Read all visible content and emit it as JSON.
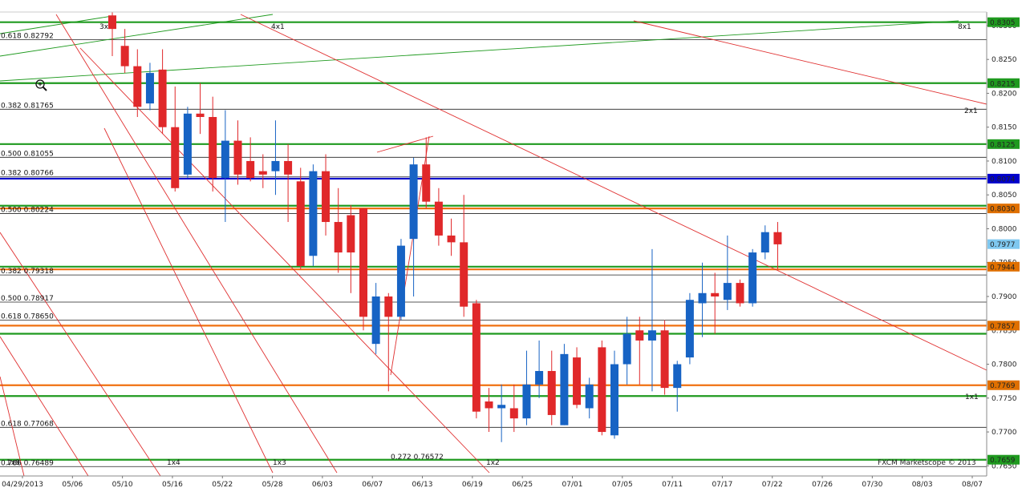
{
  "chart_data": {
    "type": "candlestick",
    "watermark": "FXCM Marketscope © 2013",
    "ylim": [
      0.7635,
      0.832
    ],
    "x_ticks": [
      "04/29/2013",
      "05/06",
      "05/10",
      "05/16",
      "05/22",
      "05/28",
      "06/03",
      "06/07",
      "06/13",
      "06/19",
      "06/25",
      "07/01",
      "07/05",
      "07/11",
      "07/17",
      "07/22",
      "07/26",
      "07/30",
      "08/03",
      "08/07"
    ],
    "y_ticks": [
      0.765,
      0.77,
      0.775,
      0.78,
      0.785,
      0.79,
      0.795,
      0.8,
      0.805,
      0.81,
      0.815,
      0.82,
      0.825,
      0.83
    ],
    "price_tags": [
      {
        "label": "0.8305",
        "value": 0.8305,
        "color": "#1f9a1f"
      },
      {
        "label": "0.8215",
        "value": 0.8215,
        "color": "#1f9a1f"
      },
      {
        "label": "0.8125",
        "value": 0.8125,
        "color": "#1f9a1f"
      },
      {
        "label": "0.8074",
        "value": 0.8074,
        "color": "#0000cc"
      },
      {
        "label": "0.8030",
        "value": 0.803,
        "color": "#e07000"
      },
      {
        "label": "0.7977",
        "value": 0.79773,
        "color": "#7fc8f0"
      },
      {
        "label": "0.7944",
        "value": 0.7944,
        "color": "#e07000"
      },
      {
        "label": "0.7857",
        "value": 0.7857,
        "color": "#e07000"
      },
      {
        "label": "0.7769",
        "value": 0.7769,
        "color": "#e07000"
      },
      {
        "label": "0.7659",
        "value": 0.7659,
        "color": "#1f9a1f"
      }
    ],
    "green_levels": [
      0.8305,
      0.8215,
      0.8125,
      0.8034,
      0.7944,
      0.7845,
      0.7753,
      0.7659
    ],
    "orange_levels": [
      0.803,
      0.794,
      0.7857,
      0.7769
    ],
    "blue_levels": [
      0.8074
    ],
    "black_levels": [
      0.82792,
      0.81765,
      0.81055,
      0.80766,
      0.80224,
      0.79318,
      0.78917,
      0.7865,
      0.7857,
      0.77068,
      0.76489
    ],
    "fib_labels": [
      {
        "text": "0.618 0.82792",
        "value": 0.82792
      },
      {
        "text": "0.382 0.81765",
        "value": 0.81765
      },
      {
        "text": "0.500 0.81055",
        "value": 0.81055
      },
      {
        "text": "0.382 0.80766",
        "value": 0.80766
      },
      {
        "text": "0.500 0.80224",
        "value": 0.80224
      },
      {
        "text": "0.382 0.79318",
        "value": 0.79318
      },
      {
        "text": "0.500 0.78917",
        "value": 0.78917
      },
      {
        "text": "0.618 0.78650",
        "value": 0.7865
      },
      {
        "text": "0.618 0.77068",
        "value": 0.77068
      },
      {
        "text": "0.786 0.76489",
        "value": 0.76489
      },
      {
        "text": "0.272 0.76572",
        "value": 0.76572
      }
    ],
    "gann_labels": [
      "3x1",
      "4x1",
      "8x1",
      "2x1",
      "1x1",
      "1x8",
      "1x4",
      "1x3",
      "1x2"
    ],
    "candles": [
      {
        "i": 0,
        "o": 0.8315,
        "h": 0.832,
        "l": 0.8255,
        "c": 0.8295
      },
      {
        "i": 1,
        "o": 0.827,
        "h": 0.8295,
        "l": 0.823,
        "c": 0.824
      },
      {
        "i": 2,
        "o": 0.824,
        "h": 0.8265,
        "l": 0.8165,
        "c": 0.818
      },
      {
        "i": 3,
        "o": 0.8185,
        "h": 0.8245,
        "l": 0.8175,
        "c": 0.823
      },
      {
        "i": 4,
        "o": 0.8235,
        "h": 0.8265,
        "l": 0.814,
        "c": 0.815
      },
      {
        "i": 5,
        "o": 0.815,
        "h": 0.821,
        "l": 0.8055,
        "c": 0.806
      },
      {
        "i": 6,
        "o": 0.808,
        "h": 0.818,
        "l": 0.8075,
        "c": 0.817
      },
      {
        "i": 7,
        "o": 0.817,
        "h": 0.8215,
        "l": 0.814,
        "c": 0.8165
      },
      {
        "i": 8,
        "o": 0.8165,
        "h": 0.8195,
        "l": 0.8055,
        "c": 0.8075
      },
      {
        "i": 9,
        "o": 0.8075,
        "h": 0.8175,
        "l": 0.801,
        "c": 0.813
      },
      {
        "i": 10,
        "o": 0.813,
        "h": 0.816,
        "l": 0.8065,
        "c": 0.808
      },
      {
        "i": 11,
        "o": 0.81,
        "h": 0.8135,
        "l": 0.807,
        "c": 0.8075
      },
      {
        "i": 12,
        "o": 0.8085,
        "h": 0.811,
        "l": 0.806,
        "c": 0.808
      },
      {
        "i": 13,
        "o": 0.8085,
        "h": 0.816,
        "l": 0.805,
        "c": 0.81
      },
      {
        "i": 14,
        "o": 0.81,
        "h": 0.8125,
        "l": 0.801,
        "c": 0.808
      },
      {
        "i": 15,
        "o": 0.807,
        "h": 0.809,
        "l": 0.794,
        "c": 0.7945
      },
      {
        "i": 16,
        "o": 0.796,
        "h": 0.8095,
        "l": 0.7945,
        "c": 0.8085
      },
      {
        "i": 17,
        "o": 0.8085,
        "h": 0.811,
        "l": 0.799,
        "c": 0.801
      },
      {
        "i": 18,
        "o": 0.801,
        "h": 0.806,
        "l": 0.7935,
        "c": 0.7965
      },
      {
        "i": 19,
        "o": 0.802,
        "h": 0.8035,
        "l": 0.7905,
        "c": 0.7965
      },
      {
        "i": 20,
        "o": 0.803,
        "h": 0.803,
        "l": 0.785,
        "c": 0.787
      },
      {
        "i": 21,
        "o": 0.783,
        "h": 0.792,
        "l": 0.7815,
        "c": 0.79
      },
      {
        "i": 22,
        "o": 0.79,
        "h": 0.7905,
        "l": 0.776,
        "c": 0.787
      },
      {
        "i": 23,
        "o": 0.787,
        "h": 0.7985,
        "l": 0.7865,
        "c": 0.7975
      },
      {
        "i": 24,
        "o": 0.7985,
        "h": 0.8105,
        "l": 0.79,
        "c": 0.8095
      },
      {
        "i": 25,
        "o": 0.8095,
        "h": 0.8135,
        "l": 0.803,
        "c": 0.804
      },
      {
        "i": 26,
        "o": 0.804,
        "h": 0.806,
        "l": 0.7975,
        "c": 0.799
      },
      {
        "i": 27,
        "o": 0.799,
        "h": 0.8015,
        "l": 0.796,
        "c": 0.798
      },
      {
        "i": 28,
        "o": 0.798,
        "h": 0.805,
        "l": 0.787,
        "c": 0.7885
      },
      {
        "i": 29,
        "o": 0.789,
        "h": 0.7895,
        "l": 0.772,
        "c": 0.773
      },
      {
        "i": 30,
        "o": 0.7745,
        "h": 0.7765,
        "l": 0.77,
        "c": 0.7735
      },
      {
        "i": 31,
        "o": 0.7735,
        "h": 0.777,
        "l": 0.7685,
        "c": 0.774
      },
      {
        "i": 32,
        "o": 0.7735,
        "h": 0.777,
        "l": 0.77,
        "c": 0.772
      },
      {
        "i": 33,
        "o": 0.772,
        "h": 0.782,
        "l": 0.771,
        "c": 0.777
      },
      {
        "i": 34,
        "o": 0.777,
        "h": 0.7835,
        "l": 0.775,
        "c": 0.779
      },
      {
        "i": 35,
        "o": 0.779,
        "h": 0.782,
        "l": 0.771,
        "c": 0.7725
      },
      {
        "i": 36,
        "o": 0.771,
        "h": 0.783,
        "l": 0.771,
        "c": 0.7815
      },
      {
        "i": 37,
        "o": 0.781,
        "h": 0.7825,
        "l": 0.7735,
        "c": 0.774
      },
      {
        "i": 38,
        "o": 0.7735,
        "h": 0.778,
        "l": 0.772,
        "c": 0.777
      },
      {
        "i": 39,
        "o": 0.7825,
        "h": 0.7835,
        "l": 0.7695,
        "c": 0.77
      },
      {
        "i": 40,
        "o": 0.7695,
        "h": 0.782,
        "l": 0.769,
        "c": 0.78
      },
      {
        "i": 41,
        "o": 0.78,
        "h": 0.787,
        "l": 0.777,
        "c": 0.7845
      },
      {
        "i": 42,
        "o": 0.785,
        "h": 0.787,
        "l": 0.777,
        "c": 0.7835
      },
      {
        "i": 43,
        "o": 0.7835,
        "h": 0.797,
        "l": 0.776,
        "c": 0.785
      },
      {
        "i": 44,
        "o": 0.785,
        "h": 0.7865,
        "l": 0.7755,
        "c": 0.7765
      },
      {
        "i": 45,
        "o": 0.7765,
        "h": 0.7805,
        "l": 0.773,
        "c": 0.78
      },
      {
        "i": 46,
        "o": 0.781,
        "h": 0.7905,
        "l": 0.78,
        "c": 0.7895
      },
      {
        "i": 47,
        "o": 0.789,
        "h": 0.795,
        "l": 0.784,
        "c": 0.7905
      },
      {
        "i": 48,
        "o": 0.7905,
        "h": 0.7935,
        "l": 0.7845,
        "c": 0.79
      },
      {
        "i": 49,
        "o": 0.7895,
        "h": 0.799,
        "l": 0.788,
        "c": 0.792
      },
      {
        "i": 50,
        "o": 0.792,
        "h": 0.7925,
        "l": 0.7885,
        "c": 0.789
      },
      {
        "i": 51,
        "o": 0.789,
        "h": 0.797,
        "l": 0.7885,
        "c": 0.7965
      },
      {
        "i": 52,
        "o": 0.7965,
        "h": 0.8005,
        "l": 0.7955,
        "c": 0.7995
      },
      {
        "i": 53,
        "o": 0.7995,
        "h": 0.801,
        "l": 0.794,
        "c": 0.7977
      }
    ]
  }
}
